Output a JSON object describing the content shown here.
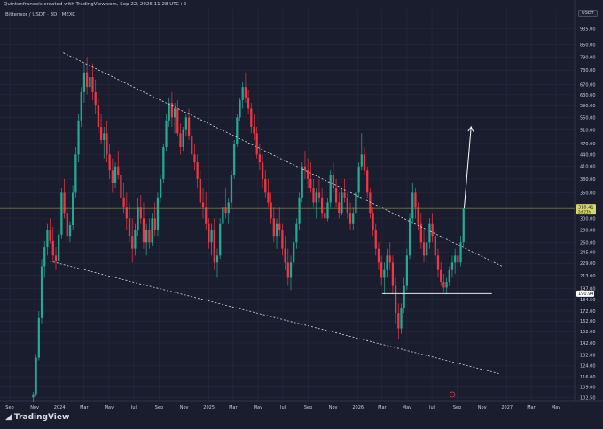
{
  "header": {
    "created": "Quintenfrancois created with TradingView.com, Sep 22, 2026 11:28 UTC+2",
    "symbol": "Bittensor / USDT · 3D · MEXC",
    "currency": "USDT",
    "logo_text": "TradingView"
  },
  "chart_data": {
    "type": "candlestick",
    "title": "",
    "price_scale": "log",
    "ylim": [
      100.5,
      1000
    ],
    "y_ticks": [
      "935.00",
      "850.00",
      "790.00",
      "730.00",
      "670.00",
      "630.00",
      "590.00",
      "550.00",
      "510.00",
      "470.00",
      "440.00",
      "410.00",
      "380.00",
      "350.00",
      "320.00",
      "300.00",
      "280.00",
      "260.00",
      "245.00",
      "229.00",
      "213.00",
      "197.00",
      "184.50",
      "172.00",
      "162.00",
      "152.00",
      "142.00",
      "132.00",
      "124.00",
      "116.00",
      "109.00",
      "102.50"
    ],
    "x_ticks": [
      "Sep",
      "Nov",
      "2024",
      "Mar",
      "May",
      "Jul",
      "Sep",
      "Nov",
      "2025",
      "Mar",
      "May",
      "Jul",
      "Sep",
      "Nov",
      "2026",
      "Mar",
      "May",
      "Jul",
      "Sep",
      "Nov",
      "2027",
      "Mar",
      "May"
    ],
    "current_price": "318.41",
    "current_price_sub": "2d 23h",
    "level_price": "190.94",
    "candle_date_range": [
      "2023-10-25",
      "2026-09-20"
    ],
    "candles": [
      [
        102.5,
        106,
        100,
        104
      ],
      [
        104,
        133,
        103,
        130
      ],
      [
        130,
        172,
        128,
        165
      ],
      [
        165,
        235,
        160,
        225
      ],
      [
        225,
        262,
        210,
        252
      ],
      [
        252,
        290,
        240,
        280
      ],
      [
        280,
        300,
        258,
        262
      ],
      [
        262,
        285,
        230,
        240
      ],
      [
        240,
        252,
        220,
        232
      ],
      [
        232,
        280,
        228,
        272
      ],
      [
        272,
        360,
        265,
        350
      ],
      [
        350,
        380,
        300,
        310
      ],
      [
        310,
        322,
        262,
        270
      ],
      [
        270,
        295,
        260,
        288
      ],
      [
        288,
        365,
        280,
        350
      ],
      [
        350,
        460,
        340,
        440
      ],
      [
        440,
        560,
        420,
        540
      ],
      [
        540,
        660,
        520,
        640
      ],
      [
        640,
        760,
        600,
        720
      ],
      [
        720,
        790,
        630,
        660
      ],
      [
        660,
        740,
        600,
        700
      ],
      [
        700,
        760,
        610,
        640
      ],
      [
        640,
        690,
        560,
        590
      ],
      [
        590,
        620,
        500,
        520
      ],
      [
        520,
        560,
        470,
        480
      ],
      [
        480,
        520,
        430,
        500
      ],
      [
        500,
        540,
        420,
        440
      ],
      [
        440,
        470,
        380,
        400
      ],
      [
        400,
        430,
        350,
        370
      ],
      [
        370,
        420,
        360,
        410
      ],
      [
        410,
        450,
        380,
        390
      ],
      [
        390,
        400,
        330,
        340
      ],
      [
        340,
        370,
        310,
        320
      ],
      [
        320,
        350,
        280,
        300
      ],
      [
        300,
        330,
        260,
        270
      ],
      [
        270,
        300,
        230,
        250
      ],
      [
        250,
        290,
        240,
        280
      ],
      [
        280,
        340,
        270,
        320
      ],
      [
        320,
        345,
        290,
        300
      ],
      [
        300,
        330,
        250,
        260
      ],
      [
        260,
        290,
        240,
        280
      ],
      [
        280,
        300,
        250,
        260
      ],
      [
        260,
        310,
        255,
        300
      ],
      [
        300,
        330,
        270,
        280
      ],
      [
        280,
        350,
        270,
        340
      ],
      [
        340,
        390,
        330,
        380
      ],
      [
        380,
        470,
        370,
        460
      ],
      [
        460,
        560,
        450,
        540
      ],
      [
        540,
        620,
        520,
        600
      ],
      [
        600,
        640,
        520,
        550
      ],
      [
        550,
        600,
        500,
        580
      ],
      [
        580,
        610,
        490,
        500
      ],
      [
        500,
        530,
        440,
        460
      ],
      [
        460,
        520,
        450,
        510
      ],
      [
        510,
        560,
        490,
        550
      ],
      [
        550,
        580,
        480,
        490
      ],
      [
        490,
        520,
        430,
        440
      ],
      [
        440,
        470,
        400,
        420
      ],
      [
        420,
        440,
        360,
        380
      ],
      [
        380,
        400,
        320,
        330
      ],
      [
        330,
        360,
        300,
        320
      ],
      [
        320,
        350,
        280,
        290
      ],
      [
        290,
        300,
        250,
        260
      ],
      [
        260,
        290,
        240,
        280
      ],
      [
        280,
        300,
        220,
        230
      ],
      [
        230,
        250,
        210,
        240
      ],
      [
        240,
        300,
        235,
        290
      ],
      [
        290,
        330,
        280,
        320
      ],
      [
        320,
        360,
        300,
        310
      ],
      [
        310,
        340,
        290,
        330
      ],
      [
        330,
        400,
        320,
        390
      ],
      [
        390,
        480,
        380,
        470
      ],
      [
        470,
        560,
        460,
        550
      ],
      [
        550,
        620,
        540,
        610
      ],
      [
        610,
        680,
        580,
        660
      ],
      [
        660,
        720,
        600,
        620
      ],
      [
        620,
        650,
        560,
        580
      ],
      [
        580,
        600,
        500,
        520
      ],
      [
        520,
        560,
        480,
        500
      ],
      [
        500,
        520,
        430,
        440
      ],
      [
        440,
        470,
        400,
        420
      ],
      [
        420,
        440,
        360,
        380
      ],
      [
        380,
        400,
        340,
        350
      ],
      [
        350,
        380,
        320,
        330
      ],
      [
        330,
        350,
        290,
        300
      ],
      [
        300,
        320,
        260,
        270
      ],
      [
        270,
        300,
        250,
        290
      ],
      [
        290,
        320,
        270,
        280
      ],
      [
        280,
        290,
        240,
        250
      ],
      [
        250,
        270,
        220,
        230
      ],
      [
        230,
        250,
        200,
        210
      ],
      [
        210,
        240,
        195,
        230
      ],
      [
        230,
        270,
        225,
        260
      ],
      [
        260,
        300,
        250,
        290
      ],
      [
        290,
        350,
        280,
        340
      ],
      [
        340,
        420,
        330,
        410
      ],
      [
        410,
        450,
        380,
        400
      ],
      [
        400,
        430,
        360,
        380
      ],
      [
        380,
        420,
        350,
        360
      ],
      [
        360,
        380,
        320,
        330
      ],
      [
        330,
        360,
        300,
        350
      ],
      [
        350,
        380,
        330,
        340
      ],
      [
        340,
        360,
        300,
        310
      ],
      [
        310,
        330,
        290,
        300
      ],
      [
        300,
        340,
        295,
        330
      ],
      [
        330,
        400,
        320,
        390
      ],
      [
        390,
        420,
        350,
        360
      ],
      [
        360,
        380,
        320,
        330
      ],
      [
        330,
        350,
        300,
        310
      ],
      [
        310,
        360,
        305,
        350
      ],
      [
        350,
        380,
        330,
        340
      ],
      [
        340,
        350,
        300,
        310
      ],
      [
        310,
        330,
        280,
        290
      ],
      [
        290,
        320,
        280,
        310
      ],
      [
        310,
        360,
        300,
        350
      ],
      [
        350,
        420,
        340,
        410
      ],
      [
        410,
        500,
        400,
        440
      ],
      [
        440,
        460,
        390,
        400
      ],
      [
        400,
        410,
        340,
        350
      ],
      [
        350,
        360,
        300,
        310
      ],
      [
        310,
        320,
        270,
        280
      ],
      [
        280,
        290,
        240,
        250
      ],
      [
        250,
        260,
        220,
        230
      ],
      [
        230,
        240,
        200,
        210
      ],
      [
        210,
        230,
        190,
        220
      ],
      [
        220,
        250,
        210,
        240
      ],
      [
        240,
        260,
        220,
        230
      ],
      [
        230,
        240,
        190,
        200
      ],
      [
        200,
        210,
        160,
        170
      ],
      [
        170,
        180,
        145,
        155
      ],
      [
        155,
        180,
        150,
        175
      ],
      [
        175,
        210,
        170,
        200
      ],
      [
        200,
        250,
        195,
        240
      ],
      [
        240,
        310,
        235,
        300
      ],
      [
        300,
        370,
        290,
        350
      ],
      [
        350,
        360,
        300,
        320
      ],
      [
        320,
        330,
        280,
        290
      ],
      [
        290,
        310,
        250,
        260
      ],
      [
        260,
        280,
        230,
        240
      ],
      [
        240,
        270,
        230,
        260
      ],
      [
        260,
        300,
        250,
        290
      ],
      [
        290,
        310,
        260,
        270
      ],
      [
        270,
        280,
        230,
        240
      ],
      [
        240,
        250,
        210,
        220
      ],
      [
        220,
        230,
        200,
        205
      ],
      [
        205,
        215,
        192,
        198
      ],
      [
        198,
        210,
        190,
        205
      ],
      [
        205,
        225,
        200,
        220
      ],
      [
        220,
        240,
        210,
        230
      ],
      [
        230,
        250,
        215,
        240
      ],
      [
        240,
        260,
        220,
        230
      ],
      [
        230,
        270,
        225,
        260
      ],
      [
        260,
        318,
        255,
        318.41
      ]
    ],
    "trendlines": [
      {
        "style": "dotted",
        "from": [
          "2024-01-10",
          810
        ],
        "to": [
          "2026-12-20",
          225
        ]
      },
      {
        "style": "dotted",
        "from": [
          "2023-12-08",
          232
        ],
        "to": [
          "2026-12-15",
          118
        ]
      },
      {
        "style": "solid",
        "from": [
          "2026-03-01",
          190.94
        ],
        "to": [
          "2026-11-25",
          190.94
        ]
      },
      {
        "style": "arrow",
        "from": [
          "2026-09-18",
          318
        ],
        "to": [
          "2026-10-05",
          520
        ]
      }
    ]
  },
  "colors": {
    "up": "#22ab94",
    "down": "#f23645",
    "background": "#1a1d2e",
    "grid": "#262a3d",
    "text": "#c9ccd6",
    "price_line": "#8a8f3a",
    "price_label_bg": "#d6d66a"
  }
}
